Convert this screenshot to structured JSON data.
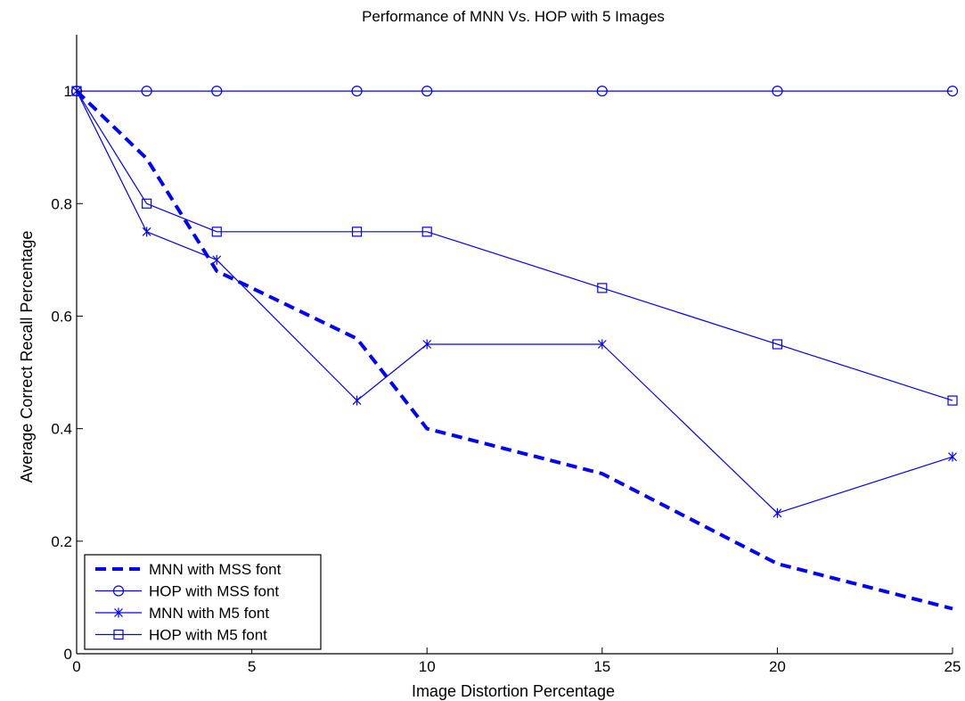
{
  "chart_data": {
    "type": "line",
    "title": "Performance of MNN Vs. HOP with 5 Images",
    "xlabel": "Image Distortion Percentage",
    "ylabel": "Average Correct Recall Percentage",
    "xlim": [
      0,
      25
    ],
    "ylim": [
      0,
      1.1
    ],
    "xticks": [
      0,
      5,
      10,
      15,
      20,
      25
    ],
    "xtick_labels": [
      "0",
      "5",
      "10",
      "15",
      "20",
      "25"
    ],
    "yticks": [
      0,
      0.2,
      0.4,
      0.6,
      0.8,
      1
    ],
    "ytick_labels": [
      "0",
      "0.2",
      "0.4",
      "0.6",
      "0.8",
      "1"
    ],
    "grid": false,
    "legend_position": "bottom-left",
    "series": [
      {
        "name": "MNN with MSS font",
        "style": "dashed",
        "marker": "none",
        "color": "#0000ff",
        "x": [
          0,
          2,
          4,
          8,
          10,
          15,
          20,
          25
        ],
        "values": [
          1.0,
          0.88,
          0.68,
          0.56,
          0.4,
          0.32,
          0.16,
          0.08
        ]
      },
      {
        "name": "HOP with MSS font",
        "style": "solid",
        "marker": "circle",
        "color": "#0000ff",
        "x": [
          0,
          2,
          4,
          8,
          10,
          15,
          20,
          25
        ],
        "values": [
          1.0,
          1.0,
          1.0,
          1.0,
          1.0,
          1.0,
          1.0,
          1.0
        ]
      },
      {
        "name": "MNN with M5 font",
        "style": "solid",
        "marker": "asterisk",
        "color": "#0000ff",
        "x": [
          0,
          2,
          4,
          8,
          10,
          15,
          20,
          25
        ],
        "values": [
          1.0,
          0.75,
          0.7,
          0.45,
          0.55,
          0.55,
          0.25,
          0.35
        ]
      },
      {
        "name": "HOP with M5 font",
        "style": "solid",
        "marker": "square",
        "color": "#0000ff",
        "x": [
          0,
          2,
          4,
          8,
          10,
          15,
          20,
          25
        ],
        "values": [
          1.0,
          0.8,
          0.75,
          0.75,
          0.75,
          0.65,
          0.55,
          0.45
        ]
      }
    ]
  }
}
